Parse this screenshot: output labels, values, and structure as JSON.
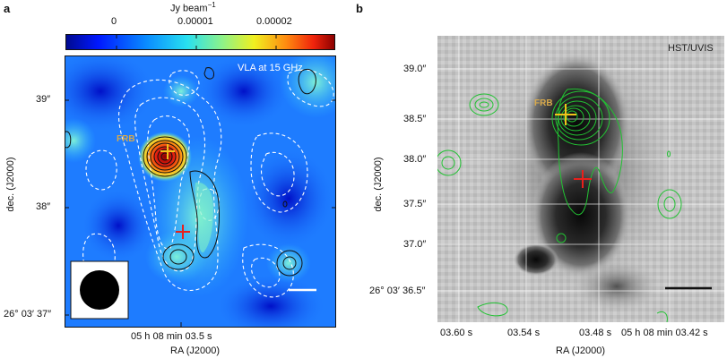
{
  "panel_a": {
    "letter": "a",
    "colorbar": {
      "unit": "Jy beam",
      "unit_exp": "−1",
      "ticks": [
        "0",
        "0.00001",
        "0.00002"
      ]
    },
    "map_label": "VLA at 15 GHz",
    "frb_label": "FRB",
    "yticks": [
      "39″",
      "38″",
      "26° 03′ 37″"
    ],
    "xtick": "05 h 08 min 03.5 s",
    "ylabel": "dec. (J2000)",
    "xlabel": "RA (J2000)"
  },
  "panel_b": {
    "letter": "b",
    "map_label": "HST/UVIS",
    "frb_label": "FRB",
    "yticks": [
      "39.0″",
      "38.5″",
      "38.0″",
      "37.5″",
      "37.0″",
      "26° 03′ 36.5″"
    ],
    "xticks": [
      "03.60 s",
      "03.54 s",
      "03.48 s",
      "05 h 08 min 03.42 s"
    ],
    "ylabel": "dec. (J2000)",
    "xlabel": "RA (J2000)"
  },
  "colors": {
    "frb_marker": "#f2c21b",
    "center_marker": "#e8201c",
    "contour_green": "#22c233",
    "contour_dark": "#111111",
    "contour_white": "#ffffff"
  }
}
